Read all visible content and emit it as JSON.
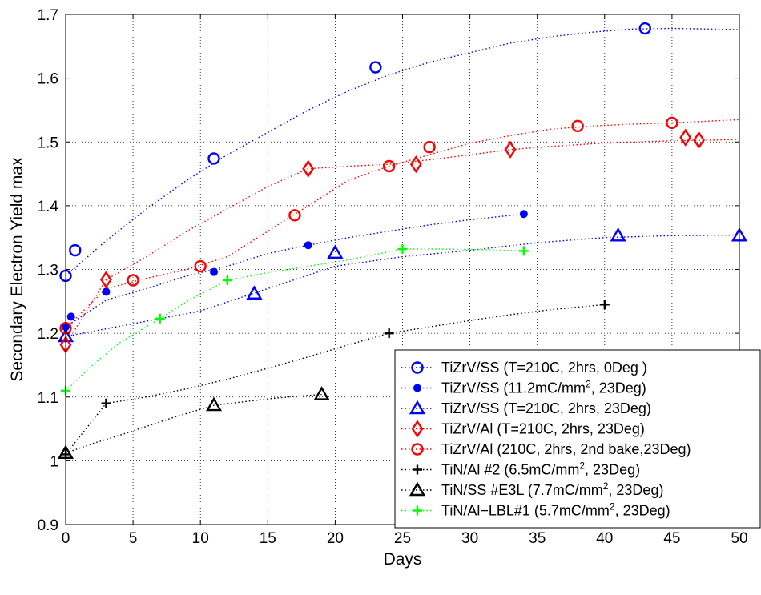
{
  "chart_data": {
    "type": "scatter",
    "title": "",
    "xlabel": "Days",
    "ylabel": "Secondary Electron Yield max",
    "xlim": [
      0,
      50
    ],
    "ylim": [
      0.9,
      1.7
    ],
    "xticks": [
      "0",
      "5",
      "10",
      "15",
      "20",
      "25",
      "30",
      "35",
      "40",
      "45",
      "50"
    ],
    "yticks": [
      "0.9",
      "1",
      "1.1",
      "1.2",
      "1.3",
      "1.4",
      "1.5",
      "1.6",
      "1.7"
    ],
    "grid": true,
    "legend_position": "bottom-right",
    "series": [
      {
        "name": "TiZrV/SS (T=210C, 2hrs, 0Deg )",
        "legend": {
          "pre": "TiZrV/SS (T=210C, 2hrs, 0Deg )",
          "sup": "",
          "post": ""
        },
        "color": "#0000ff",
        "marker": "circle",
        "x": [
          0,
          0.7,
          11,
          23,
          43
        ],
        "y": [
          1.29,
          1.33,
          1.474,
          1.617,
          1.678
        ],
        "fit_x": [
          0,
          3,
          6,
          9,
          12,
          15,
          18,
          21,
          24,
          27,
          30,
          33,
          36,
          39,
          42,
          45,
          48,
          50
        ],
        "fit_y": [
          1.29,
          1.345,
          1.395,
          1.44,
          1.48,
          1.515,
          1.55,
          1.58,
          1.605,
          1.625,
          1.64,
          1.655,
          1.665,
          1.672,
          1.677,
          1.678,
          1.677,
          1.676
        ]
      },
      {
        "name": "TiZrV/SS (11.2mC/mm2, 23Deg)",
        "legend": {
          "pre": "TiZrV/SS (11.2mC/mm",
          "sup": "2",
          "post": ", 23Deg)"
        },
        "color": "#0000ff",
        "marker": "star",
        "x": [
          0,
          0.4,
          3,
          11,
          18,
          34
        ],
        "y": [
          1.21,
          1.226,
          1.265,
          1.296,
          1.338,
          1.387
        ],
        "fit_x": [
          0,
          3,
          6,
          9,
          12,
          15,
          18,
          21,
          24,
          27,
          30,
          34
        ],
        "fit_y": [
          1.21,
          1.252,
          1.27,
          1.29,
          1.305,
          1.325,
          1.338,
          1.35,
          1.36,
          1.37,
          1.378,
          1.387
        ]
      },
      {
        "name": "TiZrV/SS (T=210C, 2hrs, 23Deg)",
        "legend": {
          "pre": "TiZrV/SS (T=210C, 2hrs, 23Deg)",
          "sup": "",
          "post": ""
        },
        "color": "#0000ff",
        "marker": "triangle",
        "x": [
          0,
          14,
          20,
          41,
          50
        ],
        "y": [
          1.195,
          1.262,
          1.326,
          1.353,
          1.353
        ],
        "fit_x": [
          0,
          5,
          10,
          15,
          20,
          25,
          30,
          35,
          40,
          45,
          50
        ],
        "fit_y": [
          1.195,
          1.215,
          1.235,
          1.27,
          1.305,
          1.32,
          1.33,
          1.342,
          1.35,
          1.353,
          1.354
        ]
      },
      {
        "name": "TiZrV/Al (T=210C, 2hrs, 23Deg)",
        "legend": {
          "pre": "TiZrV/Al (T=210C, 2hrs, 23Deg)",
          "sup": "",
          "post": ""
        },
        "color": "#ff0000",
        "marker": "diamond",
        "x": [
          0,
          3,
          18,
          26,
          33,
          46,
          47
        ],
        "y": [
          1.182,
          1.284,
          1.458,
          1.465,
          1.488,
          1.507,
          1.503
        ],
        "fit_x": [
          0,
          3,
          6,
          9,
          12,
          15,
          18,
          21,
          24,
          27,
          30,
          33,
          36,
          39,
          42,
          45,
          48,
          50
        ],
        "fit_y": [
          1.182,
          1.284,
          1.32,
          1.36,
          1.395,
          1.43,
          1.458,
          1.462,
          1.465,
          1.472,
          1.48,
          1.488,
          1.493,
          1.497,
          1.5,
          1.502,
          1.503,
          1.504
        ]
      },
      {
        "name": "TiZrV/Al (210C, 2hrs, 2nd bake,23Deg)",
        "legend": {
          "pre": "TiZrV/Al (210C, 2hrs, 2nd bake,23Deg)",
          "sup": "",
          "post": ""
        },
        "color": "#ff0000",
        "marker": "circle",
        "x": [
          0,
          5,
          10,
          17,
          24,
          27,
          38,
          45
        ],
        "y": [
          1.208,
          1.283,
          1.305,
          1.385,
          1.462,
          1.492,
          1.525,
          1.53
        ],
        "fit_x": [
          0,
          3,
          6,
          9,
          12,
          15,
          18,
          21,
          24,
          27,
          30,
          33,
          36,
          39,
          42,
          45,
          48,
          50
        ],
        "fit_y": [
          1.208,
          1.27,
          1.286,
          1.3,
          1.32,
          1.36,
          1.4,
          1.44,
          1.462,
          1.48,
          1.498,
          1.51,
          1.52,
          1.525,
          1.528,
          1.53,
          1.533,
          1.535
        ]
      },
      {
        "name": "TiN/Al #2 (6.5mC/mm2, 23Deg)",
        "legend": {
          "pre": "TiN/Al #2 (6.5mC/mm",
          "sup": "2",
          "post": ", 23Deg)"
        },
        "color": "#000000",
        "marker": "plus",
        "x": [
          0,
          3,
          24,
          40
        ],
        "y": [
          1.01,
          1.09,
          1.2,
          1.245
        ],
        "fit_x": [
          0,
          3,
          6,
          9,
          12,
          15,
          18,
          21,
          24,
          27,
          30,
          33,
          36,
          40
        ],
        "fit_y": [
          1.01,
          1.09,
          1.1,
          1.113,
          1.128,
          1.145,
          1.163,
          1.182,
          1.2,
          1.21,
          1.22,
          1.229,
          1.237,
          1.245
        ]
      },
      {
        "name": "TiN/SS #E3L (7.7mC/mm2, 23Deg)",
        "legend": {
          "pre": "TiN/SS #E3L (7.7mC/mm",
          "sup": "2",
          "post": ", 23Deg)"
        },
        "color": "#000000",
        "marker": "triangle",
        "x": [
          0,
          11,
          19
        ],
        "y": [
          1.012,
          1.087,
          1.104
        ],
        "fit_x": [
          0,
          2,
          4,
          6,
          8,
          11,
          13,
          15,
          17,
          19
        ],
        "fit_y": [
          1.012,
          1.027,
          1.04,
          1.054,
          1.068,
          1.087,
          1.092,
          1.097,
          1.101,
          1.104
        ]
      },
      {
        "name": "TiN/Al-LBL#1 (5.7mC/mm2, 23Deg)",
        "legend": {
          "pre": "TiN/Al−LBL#1 (5.7mC/mm",
          "sup": "2",
          "post": ", 23Deg)"
        },
        "color": "#00ff00",
        "marker": "plus",
        "x": [
          0,
          7,
          12,
          25,
          34
        ],
        "y": [
          1.11,
          1.223,
          1.283,
          1.332,
          1.329
        ],
        "fit_x": [
          0,
          2,
          4,
          7,
          9,
          12,
          15,
          18,
          21,
          25,
          28,
          31,
          34
        ],
        "fit_y": [
          1.11,
          1.15,
          1.185,
          1.223,
          1.25,
          1.283,
          1.295,
          1.305,
          1.315,
          1.332,
          1.332,
          1.331,
          1.329
        ]
      }
    ]
  }
}
